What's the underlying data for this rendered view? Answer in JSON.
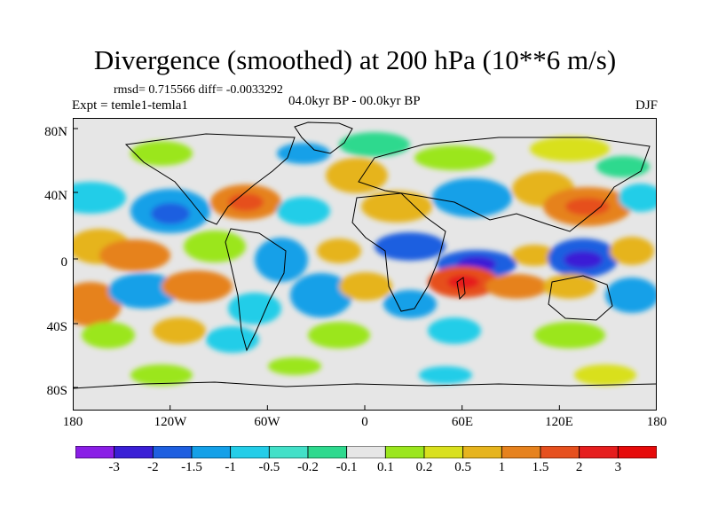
{
  "title": "Divergence (smoothed) at 200 hPa (10**6 m/s)",
  "stats_text": "rmsd= 0.715566 diff= -0.0033292",
  "period": "04.0kyr BP - 00.0kyr BP",
  "experiment": "Expt = temle1-temla1",
  "season": "DJF",
  "axes": {
    "lat_ticks": [
      "80N",
      "40N",
      "0",
      "40S",
      "80S"
    ],
    "lon_ticks": [
      "180",
      "120W",
      "60W",
      "0",
      "60E",
      "120E",
      "180"
    ]
  },
  "colorbar": {
    "labels": [
      "-3",
      "-2",
      "-1.5",
      "-1",
      "-0.5",
      "-0.2",
      "-0.1",
      "0.1",
      "0.2",
      "0.5",
      "1",
      "1.5",
      "2",
      "3"
    ],
    "colors": [
      "#8a1ee6",
      "#3a1fd6",
      "#1e5fe0",
      "#14a0e8",
      "#24cde8",
      "#43e0c8",
      "#2ed98e",
      "#e6e6e6",
      "#9be61e",
      "#d9e01e",
      "#e6b41e",
      "#e6821e",
      "#e6501e",
      "#e61e1e",
      "#e60a0a"
    ]
  },
  "colors": {
    "background": "#ffffff",
    "neutral": "#e6e6e6"
  }
}
